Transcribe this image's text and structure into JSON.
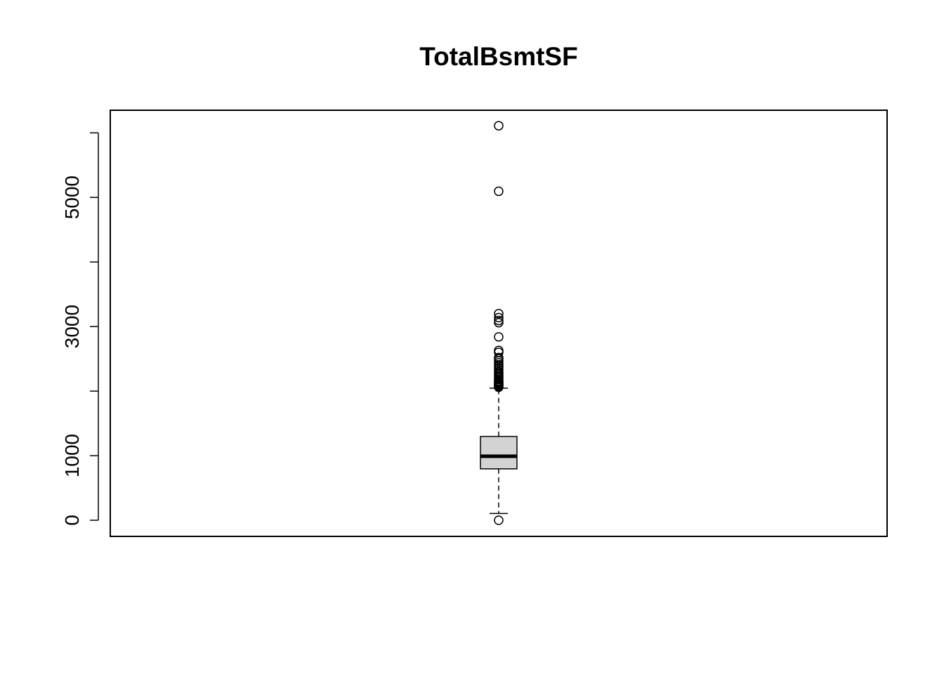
{
  "chart_data": {
    "type": "boxplot",
    "title": "TotalBsmtSF",
    "xlabel": "",
    "ylabel": "",
    "ylim": [
      -250,
      6350
    ],
    "yticks": [
      0,
      1000,
      2000,
      3000,
      4000,
      5000,
      6000
    ],
    "ytick_labels": [
      "0",
      "1000",
      "",
      "3000",
      "",
      "5000",
      ""
    ],
    "grid": false,
    "box": {
      "whisker_low": 105,
      "q1": 796,
      "median": 991,
      "q3": 1298,
      "whisker_high": 2046,
      "fill": "#d3d3d3"
    },
    "outliers": [
      0,
      2060,
      2070,
      2080,
      2090,
      2100,
      2110,
      2121,
      2130,
      2140,
      2150,
      2160,
      2180,
      2200,
      2220,
      2240,
      2260,
      2280,
      2300,
      2330,
      2360,
      2390,
      2410,
      2440,
      2470,
      2500,
      2520,
      2600,
      2630,
      2840,
      3060,
      3094,
      3138,
      3200,
      5095,
      6110
    ]
  }
}
